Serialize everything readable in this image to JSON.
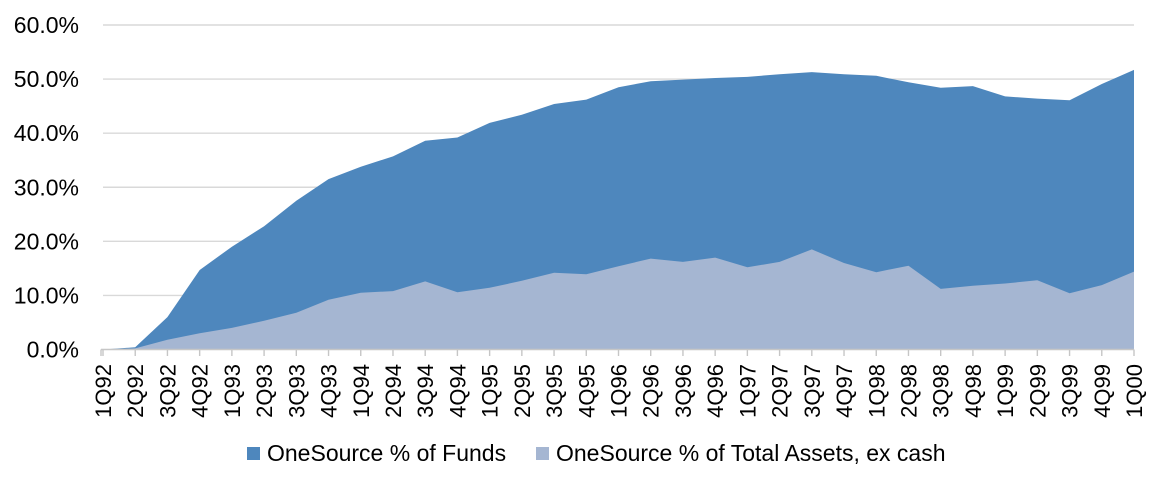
{
  "chart_data": {
    "type": "area",
    "overlap": true,
    "categories": [
      "1Q92",
      "2Q92",
      "3Q92",
      "4Q92",
      "1Q93",
      "2Q93",
      "3Q93",
      "4Q93",
      "1Q94",
      "2Q94",
      "3Q94",
      "4Q94",
      "1Q95",
      "2Q95",
      "3Q95",
      "4Q95",
      "1Q96",
      "2Q96",
      "3Q96",
      "4Q96",
      "1Q97",
      "2Q97",
      "3Q97",
      "4Q97",
      "1Q98",
      "2Q98",
      "3Q98",
      "4Q98",
      "1Q99",
      "2Q99",
      "3Q99",
      "4Q99",
      "1Q00"
    ],
    "series": [
      {
        "name": "OneSource % of Funds",
        "color": "#4E87BD",
        "values": [
          0.0,
          0.4,
          6.0,
          14.7,
          19.0,
          22.8,
          27.5,
          31.5,
          33.8,
          35.7,
          38.6,
          39.2,
          41.9,
          43.4,
          45.4,
          46.2,
          48.5,
          49.6,
          49.9,
          50.2,
          50.4,
          50.9,
          51.3,
          50.9,
          50.6,
          49.4,
          48.4,
          48.7,
          46.8,
          46.4,
          46.1,
          49.1,
          51.7
        ]
      },
      {
        "name": "OneSource % of Total Assets, ex cash",
        "color": "#A5B6D2",
        "values": [
          0.0,
          0.2,
          1.8,
          3.0,
          4.0,
          5.3,
          6.8,
          9.2,
          10.5,
          10.8,
          12.6,
          10.6,
          11.4,
          12.7,
          14.2,
          13.9,
          15.4,
          16.8,
          16.2,
          17.0,
          15.2,
          16.2,
          18.5,
          16.0,
          14.3,
          15.5,
          11.2,
          11.8,
          12.2,
          12.8,
          10.4,
          11.9,
          14.4
        ]
      }
    ],
    "ylim": [
      0,
      60
    ],
    "y_ticks": [
      {
        "value": 0,
        "label": "0.0%"
      },
      {
        "value": 10,
        "label": "10.0%"
      },
      {
        "value": 20,
        "label": "20.0%"
      },
      {
        "value": 30,
        "label": "30.0%"
      },
      {
        "value": 40,
        "label": "40.0%"
      },
      {
        "value": 50,
        "label": "50.0%"
      },
      {
        "value": 60,
        "label": "60.0%"
      }
    ],
    "grid": true,
    "legend_position": "bottom",
    "xlabel": "",
    "ylabel": "",
    "title": ""
  },
  "style": {
    "gridline_color": "#D9D9D9",
    "axis_color": "#C6C6C6",
    "text_color": "#000000",
    "background": "#FFFFFF"
  }
}
